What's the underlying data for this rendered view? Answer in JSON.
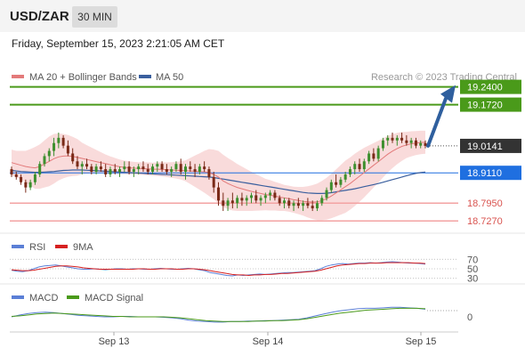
{
  "header": {
    "symbol": "USD/ZAR",
    "timeframe": "30 MIN",
    "datetime": "Friday, September 15, 2023 2:21:05 AM CET"
  },
  "legend": {
    "ma20_label": "MA 20 + Bollinger Bands",
    "ma50_label": "MA 50",
    "credit": "Research © 2023 Trading Central",
    "rsi_label": "RSI",
    "rsi_ma_label": "9MA",
    "macd_label": "MACD",
    "macd_signal_label": "MACD Signal"
  },
  "colors": {
    "resistance": "#4a9a1a",
    "support": "#f3a3a3",
    "support_text": "#d9534f",
    "pivot": "#1f6fe0",
    "current": "#333333",
    "bullish_candle": "#3d8f2e",
    "bearish_candle": "#7a2a18",
    "ma20": "#e37a7a",
    "ma50": "#3a5f9e",
    "bollinger_fill": "#f8d5d5",
    "arrow": "#2f5f9e",
    "rsi": "#5b7fd6",
    "rsi_ma": "#d62020",
    "macd": "#5b7fd6",
    "macd_signal": "#4a9a1a"
  },
  "chart_data": [
    {
      "type": "candlestick",
      "title": "USD/ZAR 30 MIN",
      "x_labels": [
        "Sep 13",
        "Sep 14",
        "Sep 15"
      ],
      "ylim": [
        18.68,
        19.3
      ],
      "levels": {
        "resistance": [
          19.24,
          19.172
        ],
        "current": 19.0141,
        "pivot": 18.911,
        "support": [
          18.795,
          18.727
        ]
      },
      "level_labels": {
        "r1": "19.2400",
        "r2": "19.1720",
        "current": "19.0141",
        "pivot": "18.9110",
        "s1": "18.7950",
        "s2": "18.7270"
      },
      "candles": [
        [
          18.925,
          18.935,
          18.895,
          18.905
        ],
        [
          18.905,
          18.915,
          18.885,
          18.895
        ],
        [
          18.895,
          18.905,
          18.865,
          18.875
        ],
        [
          18.875,
          18.885,
          18.835,
          18.855
        ],
        [
          18.855,
          18.885,
          18.845,
          18.875
        ],
        [
          18.875,
          18.915,
          18.865,
          18.905
        ],
        [
          18.905,
          18.955,
          18.895,
          18.945
        ],
        [
          18.945,
          18.985,
          18.935,
          18.975
        ],
        [
          18.975,
          19.005,
          18.955,
          18.995
        ],
        [
          18.995,
          19.045,
          18.975,
          19.025
        ],
        [
          19.025,
          19.065,
          19.005,
          19.045
        ],
        [
          19.045,
          19.055,
          19.005,
          19.015
        ],
        [
          19.015,
          19.035,
          18.975,
          18.985
        ],
        [
          18.985,
          19.005,
          18.945,
          18.955
        ],
        [
          18.955,
          18.975,
          18.925,
          18.935
        ],
        [
          18.935,
          18.955,
          18.905,
          18.945
        ],
        [
          18.945,
          18.965,
          18.925,
          18.935
        ],
        [
          18.935,
          18.945,
          18.905,
          18.915
        ],
        [
          18.915,
          18.945,
          18.905,
          18.935
        ],
        [
          18.935,
          18.955,
          18.915,
          18.925
        ],
        [
          18.925,
          18.945,
          18.895,
          18.905
        ],
        [
          18.905,
          18.935,
          18.895,
          18.925
        ],
        [
          18.925,
          18.945,
          18.905,
          18.915
        ],
        [
          18.915,
          18.935,
          18.895,
          18.925
        ],
        [
          18.925,
          18.955,
          18.915,
          18.935
        ],
        [
          18.935,
          18.955,
          18.905,
          18.915
        ],
        [
          18.915,
          18.935,
          18.895,
          18.925
        ],
        [
          18.925,
          18.945,
          18.905,
          18.935
        ],
        [
          18.935,
          18.955,
          18.915,
          18.925
        ],
        [
          18.925,
          18.945,
          18.905,
          18.915
        ],
        [
          18.915,
          18.945,
          18.905,
          18.935
        ],
        [
          18.935,
          18.955,
          18.915,
          18.945
        ],
        [
          18.945,
          18.955,
          18.915,
          18.925
        ],
        [
          18.925,
          18.945,
          18.905,
          18.915
        ],
        [
          18.915,
          18.935,
          18.895,
          18.925
        ],
        [
          18.925,
          18.955,
          18.915,
          18.945
        ],
        [
          18.945,
          18.965,
          18.905,
          18.915
        ],
        [
          18.915,
          18.945,
          18.885,
          18.935
        ],
        [
          18.935,
          18.955,
          18.915,
          18.925
        ],
        [
          18.925,
          18.945,
          18.895,
          18.915
        ],
        [
          18.915,
          18.945,
          18.905,
          18.935
        ],
        [
          18.935,
          18.955,
          18.915,
          18.925
        ],
        [
          18.925,
          18.935,
          18.885,
          18.895
        ],
        [
          18.895,
          18.915,
          18.835,
          18.855
        ],
        [
          18.855,
          18.875,
          18.785,
          18.805
        ],
        [
          18.805,
          18.835,
          18.765,
          18.785
        ],
        [
          18.785,
          18.815,
          18.765,
          18.805
        ],
        [
          18.805,
          18.835,
          18.775,
          18.795
        ],
        [
          18.795,
          18.825,
          18.775,
          18.815
        ],
        [
          18.815,
          18.835,
          18.785,
          18.805
        ],
        [
          18.805,
          18.825,
          18.785,
          18.815
        ],
        [
          18.815,
          18.835,
          18.795,
          18.825
        ],
        [
          18.825,
          18.845,
          18.795,
          18.805
        ],
        [
          18.805,
          18.825,
          18.785,
          18.815
        ],
        [
          18.815,
          18.835,
          18.795,
          18.825
        ],
        [
          18.825,
          18.845,
          18.805,
          18.835
        ],
        [
          18.835,
          18.845,
          18.805,
          18.815
        ],
        [
          18.815,
          18.825,
          18.785,
          18.795
        ],
        [
          18.795,
          18.815,
          18.775,
          18.805
        ],
        [
          18.805,
          18.815,
          18.775,
          18.785
        ],
        [
          18.785,
          18.805,
          18.765,
          18.795
        ],
        [
          18.795,
          18.815,
          18.775,
          18.785
        ],
        [
          18.785,
          18.805,
          18.765,
          18.795
        ],
        [
          18.795,
          18.815,
          18.775,
          18.785
        ],
        [
          18.785,
          18.805,
          18.765,
          18.775
        ],
        [
          18.775,
          18.805,
          18.765,
          18.795
        ],
        [
          18.795,
          18.825,
          18.785,
          18.815
        ],
        [
          18.815,
          18.855,
          18.805,
          18.845
        ],
        [
          18.845,
          18.885,
          18.835,
          18.875
        ],
        [
          18.875,
          18.905,
          18.855,
          18.865
        ],
        [
          18.865,
          18.895,
          18.855,
          18.885
        ],
        [
          18.885,
          18.915,
          18.875,
          18.905
        ],
        [
          18.905,
          18.935,
          18.895,
          18.925
        ],
        [
          18.925,
          18.955,
          18.905,
          18.945
        ],
        [
          18.945,
          18.965,
          18.915,
          18.925
        ],
        [
          18.925,
          18.965,
          18.915,
          18.955
        ],
        [
          18.955,
          18.995,
          18.945,
          18.985
        ],
        [
          18.985,
          19.005,
          18.955,
          18.965
        ],
        [
          18.965,
          19.015,
          18.955,
          19.005
        ],
        [
          19.005,
          19.045,
          18.995,
          19.035
        ],
        [
          19.035,
          19.055,
          19.015,
          19.045
        ],
        [
          19.045,
          19.065,
          19.025,
          19.035
        ],
        [
          19.035,
          19.055,
          19.015,
          19.045
        ],
        [
          19.045,
          19.065,
          19.025,
          19.035
        ],
        [
          19.035,
          19.055,
          19.015,
          19.025
        ],
        [
          19.025,
          19.045,
          19.005,
          19.035
        ],
        [
          19.035,
          19.045,
          19.005,
          19.015
        ],
        [
          19.015,
          19.035,
          19.005,
          19.025
        ],
        [
          19.025,
          19.035,
          19.005,
          19.014
        ]
      ],
      "ma20": [
        18.95,
        18.945,
        18.94,
        18.935,
        18.932,
        18.93,
        18.935,
        18.945,
        18.955,
        18.965,
        18.972,
        18.975,
        18.976,
        18.974,
        18.97,
        18.966,
        18.962,
        18.958,
        18.954,
        18.95,
        18.946,
        18.942,
        18.938,
        18.934,
        18.932,
        18.93,
        18.929,
        18.928,
        18.927,
        18.926,
        18.925,
        18.925,
        18.924,
        18.923,
        18.922,
        18.921,
        18.92,
        18.919,
        18.918,
        18.917,
        18.916,
        18.915,
        18.912,
        18.905,
        18.895,
        18.88,
        18.87,
        18.862,
        18.855,
        18.85,
        18.845,
        18.84,
        18.836,
        18.832,
        18.828,
        18.825,
        18.822,
        18.818,
        18.815,
        18.812,
        18.808,
        18.805,
        18.802,
        18.8,
        18.799,
        18.8,
        18.805,
        18.812,
        18.822,
        18.834,
        18.846,
        18.858,
        18.87,
        18.884,
        18.898,
        18.912,
        18.926,
        18.94,
        18.954,
        18.968,
        18.982,
        18.994,
        19.004,
        19.012,
        19.018,
        19.022,
        19.025,
        19.027,
        19.028
      ],
      "ma50": [
        18.92,
        18.918,
        18.916,
        18.915,
        18.914,
        18.913,
        18.913,
        18.914,
        18.915,
        18.916,
        18.918,
        18.92,
        18.921,
        18.922,
        18.922,
        18.922,
        18.921,
        18.92,
        18.919,
        18.918,
        18.917,
        18.916,
        18.915,
        18.914,
        18.913,
        18.912,
        18.911,
        18.91,
        18.909,
        18.908,
        18.907,
        18.906,
        18.905,
        18.904,
        18.903,
        18.902,
        18.901,
        18.9,
        18.899,
        18.898,
        18.897,
        18.896,
        18.895,
        18.893,
        18.89,
        18.887,
        18.884,
        18.881,
        18.878,
        18.875,
        18.872,
        18.869,
        18.866,
        18.863,
        18.86,
        18.857,
        18.854,
        18.851,
        18.848,
        18.845,
        18.842,
        18.839,
        18.836,
        18.834,
        18.833,
        18.832,
        18.832,
        18.833,
        18.835,
        18.838,
        18.841,
        18.844,
        18.847,
        18.85,
        18.854,
        18.858,
        18.862,
        18.866,
        18.87,
        18.875,
        18.88,
        18.885,
        18.89,
        18.895,
        18.9,
        18.905,
        18.909,
        18.912,
        18.914
      ],
      "bb_width": [
        0.05,
        0.05,
        0.055,
        0.06,
        0.07,
        0.08,
        0.085,
        0.09,
        0.095,
        0.095,
        0.09,
        0.085,
        0.08,
        0.075,
        0.07,
        0.06,
        0.055,
        0.05,
        0.045,
        0.04,
        0.035,
        0.032,
        0.03,
        0.028,
        0.026,
        0.025,
        0.024,
        0.024,
        0.024,
        0.025,
        0.025,
        0.026,
        0.027,
        0.028,
        0.03,
        0.032,
        0.035,
        0.04,
        0.05,
        0.06,
        0.07,
        0.08,
        0.09,
        0.095,
        0.1,
        0.1,
        0.098,
        0.095,
        0.09,
        0.085,
        0.08,
        0.075,
        0.07,
        0.065,
        0.06,
        0.058,
        0.055,
        0.053,
        0.05,
        0.05,
        0.05,
        0.052,
        0.055,
        0.06,
        0.065,
        0.07,
        0.075,
        0.08,
        0.085,
        0.09,
        0.095,
        0.1,
        0.1,
        0.1,
        0.098,
        0.095,
        0.09,
        0.085,
        0.08,
        0.075,
        0.07,
        0.065,
        0.06,
        0.055,
        0.05,
        0.048,
        0.046,
        0.045,
        0.044
      ]
    },
    {
      "type": "line",
      "title": "RSI",
      "ylim": [
        20,
        80
      ],
      "y_ticks": [
        70,
        50,
        30
      ],
      "series": [
        {
          "name": "RSI",
          "values": [
            47,
            45,
            44,
            46,
            50,
            54,
            56,
            57,
            58,
            56,
            54,
            52,
            50,
            49,
            49,
            50,
            49,
            48,
            49,
            50,
            50,
            49,
            50,
            50,
            49,
            49,
            50,
            51,
            50,
            49,
            49,
            50,
            51,
            50,
            48,
            46,
            42,
            40,
            38,
            36,
            35,
            37,
            36,
            37,
            38,
            39,
            38,
            39,
            40,
            41,
            42,
            42,
            43,
            44,
            45,
            46,
            50,
            55,
            58,
            60,
            61,
            60,
            61,
            62,
            62,
            63,
            62,
            63,
            64,
            65,
            64,
            63,
            62,
            62,
            61,
            60
          ]
        },
        {
          "name": "9MA",
          "values": [
            48,
            47,
            46,
            46,
            47,
            49,
            51,
            53,
            55,
            56,
            56,
            55,
            54,
            52,
            51,
            50,
            49,
            49,
            49,
            49,
            49,
            49,
            49,
            50,
            50,
            49,
            49,
            50,
            50,
            50,
            49,
            49,
            50,
            50,
            49,
            48,
            46,
            44,
            42,
            40,
            38,
            37,
            37,
            36,
            37,
            37,
            38,
            38,
            39,
            40,
            40,
            41,
            42,
            43,
            44,
            45,
            47,
            50,
            53,
            56,
            58,
            59,
            60,
            61,
            61,
            62,
            62,
            62,
            63,
            63,
            63,
            63,
            63,
            62,
            62,
            61
          ]
        }
      ]
    },
    {
      "type": "line",
      "title": "MACD",
      "y_ticks": [
        0
      ],
      "series": [
        {
          "name": "MACD",
          "values": [
            0.0,
            0.004,
            0.007,
            0.009,
            0.01,
            0.009,
            0.007,
            0.005,
            0.003,
            0.002,
            0.001,
            0.0,
            0.0,
            0.001,
            0.001,
            0.0,
            0.0,
            0.0,
            -0.001,
            -0.002,
            -0.004,
            -0.007,
            -0.009,
            -0.01,
            -0.011,
            -0.011,
            -0.01,
            -0.01,
            -0.009,
            -0.009,
            -0.008,
            -0.008,
            -0.007,
            -0.006,
            -0.005,
            -0.002,
            0.002,
            0.006,
            0.01,
            0.013,
            0.015,
            0.017,
            0.018,
            0.018,
            0.019,
            0.02,
            0.02,
            0.019,
            0.018,
            0.016
          ]
        },
        {
          "name": "MACD Signal",
          "values": [
            0.001,
            0.002,
            0.004,
            0.006,
            0.007,
            0.008,
            0.007,
            0.006,
            0.005,
            0.004,
            0.003,
            0.002,
            0.001,
            0.001,
            0.0,
            0.0,
            0.0,
            0.0,
            0.0,
            -0.001,
            -0.002,
            -0.004,
            -0.006,
            -0.008,
            -0.009,
            -0.01,
            -0.01,
            -0.01,
            -0.01,
            -0.009,
            -0.009,
            -0.008,
            -0.008,
            -0.007,
            -0.006,
            -0.004,
            -0.001,
            0.002,
            0.005,
            0.008,
            0.01,
            0.012,
            0.014,
            0.015,
            0.016,
            0.017,
            0.018,
            0.018,
            0.018,
            0.017
          ]
        }
      ]
    }
  ]
}
